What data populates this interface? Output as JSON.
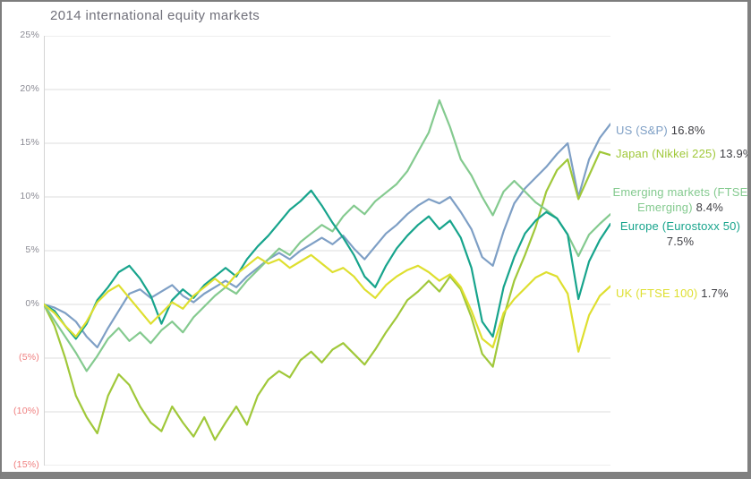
{
  "title": "2014 international equity markets",
  "frame": {
    "border_color": "#808080",
    "background": "#ffffff"
  },
  "chart_data": {
    "type": "line",
    "title": "2014 international equity markets",
    "xlabel": "",
    "ylabel": "",
    "x_range_description": "Jan 2014 to Dec 2014, weekly points, no x tick labels shown",
    "ylim": [
      -15,
      25
    ],
    "y_tick_step": 5,
    "grid": true,
    "gridline_color": "#dcdcdc",
    "axis_line_color": "#d4d4d4",
    "tick_color_positive": "#8b8b94",
    "tick_color_negative": "#ef7e7e",
    "value_text_color": "#3d3d42",
    "title_color": "#70707a",
    "legend_position": "right-of-line-ends",
    "y_axis_tick_labels": [
      "25%",
      "20%",
      "15%",
      "10%",
      "5%",
      "0%",
      "(5%)",
      "(10%)",
      "(15%)"
    ],
    "series": [
      {
        "id": "us",
        "name": "US (S&P)",
        "value_label": "16.8%",
        "final_value": 16.8,
        "color": "#7e9fc5",
        "values": [
          0,
          -0.3,
          -0.8,
          -1.6,
          -3.0,
          -4.0,
          -2.2,
          -0.6,
          1.0,
          1.4,
          0.6,
          1.2,
          1.8,
          0.8,
          0.2,
          1.0,
          1.6,
          2.2,
          1.6,
          2.6,
          3.4,
          4.2,
          4.8,
          4.2,
          5.0,
          5.6,
          6.2,
          5.6,
          6.4,
          5.2,
          4.2,
          5.4,
          6.6,
          7.4,
          8.4,
          9.2,
          9.8,
          9.4,
          10.0,
          8.6,
          7.0,
          4.4,
          3.6,
          6.8,
          9.4,
          10.8,
          11.8,
          12.8,
          14.0,
          15.0,
          10.0,
          13.5,
          15.5,
          16.8
        ]
      },
      {
        "id": "japan",
        "name": "Japan (Nikkei 225)",
        "value_label": "13.9%",
        "final_value": 13.9,
        "color": "#a0c83a",
        "values": [
          0,
          -2.0,
          -5.0,
          -8.5,
          -10.5,
          -12.0,
          -8.5,
          -6.5,
          -7.5,
          -9.5,
          -11.0,
          -11.8,
          -9.5,
          -11.0,
          -12.3,
          -10.5,
          -12.6,
          -11.0,
          -9.5,
          -11.2,
          -8.5,
          -7.0,
          -6.2,
          -6.8,
          -5.2,
          -4.4,
          -5.4,
          -4.2,
          -3.6,
          -4.6,
          -5.6,
          -4.2,
          -2.6,
          -1.2,
          0.4,
          1.2,
          2.2,
          1.2,
          2.6,
          1.4,
          -1.2,
          -4.6,
          -5.8,
          -1.2,
          2.2,
          4.6,
          7.2,
          10.5,
          12.5,
          13.5,
          9.8,
          12.0,
          14.2,
          13.9
        ]
      },
      {
        "id": "emerging",
        "name": "Emerging markets (FTSE Emerging)",
        "value_label": "8.4%",
        "final_value": 8.4,
        "color": "#84ca8f",
        "values": [
          0,
          -1.5,
          -3.0,
          -4.5,
          -6.2,
          -4.8,
          -3.2,
          -2.2,
          -3.4,
          -2.6,
          -3.6,
          -2.4,
          -1.6,
          -2.6,
          -1.2,
          -0.2,
          0.8,
          1.6,
          1.0,
          2.2,
          3.2,
          4.2,
          5.2,
          4.6,
          5.8,
          6.6,
          7.4,
          6.8,
          8.2,
          9.2,
          8.4,
          9.6,
          10.4,
          11.2,
          12.4,
          14.2,
          16.0,
          19.0,
          16.5,
          13.5,
          12.0,
          10.0,
          8.3,
          10.5,
          11.5,
          10.5,
          9.5,
          8.8,
          8.0,
          6.5,
          4.5,
          6.5,
          7.5,
          8.4
        ]
      },
      {
        "id": "europe",
        "name": "Europe (Eurostoxx 50)",
        "value_label": "7.5%",
        "final_value": 7.5,
        "color": "#17a48c",
        "values": [
          0,
          -0.6,
          -2.0,
          -3.2,
          -1.8,
          0.4,
          1.6,
          3.0,
          3.6,
          2.4,
          0.8,
          -1.8,
          0.4,
          1.4,
          0.6,
          1.8,
          2.6,
          3.4,
          2.6,
          4.2,
          5.4,
          6.4,
          7.6,
          8.8,
          9.6,
          10.6,
          9.2,
          7.6,
          6.2,
          4.6,
          2.6,
          1.6,
          3.6,
          5.2,
          6.4,
          7.4,
          8.2,
          7.0,
          7.8,
          6.2,
          3.4,
          -1.6,
          -3.0,
          1.6,
          4.4,
          6.6,
          7.8,
          8.6,
          8.0,
          6.5,
          0.5,
          4.0,
          6.0,
          7.5
        ]
      },
      {
        "id": "uk",
        "name": "UK (FTSE 100)",
        "value_label": "1.7%",
        "final_value": 1.7,
        "color": "#dedf2f",
        "values": [
          0,
          -0.8,
          -2.0,
          -3.0,
          -1.6,
          0.2,
          1.2,
          1.8,
          0.6,
          -0.6,
          -1.8,
          -0.8,
          0.2,
          -0.4,
          0.8,
          1.6,
          2.4,
          1.6,
          2.8,
          3.6,
          4.4,
          3.8,
          4.2,
          3.4,
          4.0,
          4.6,
          3.8,
          3.0,
          3.4,
          2.6,
          1.4,
          0.6,
          1.8,
          2.6,
          3.2,
          3.6,
          3.0,
          2.2,
          2.8,
          1.6,
          -0.6,
          -3.2,
          -4.0,
          -0.8,
          0.5,
          1.5,
          2.5,
          3.0,
          2.6,
          1.0,
          -4.4,
          -1.0,
          0.8,
          1.7
        ]
      }
    ]
  }
}
